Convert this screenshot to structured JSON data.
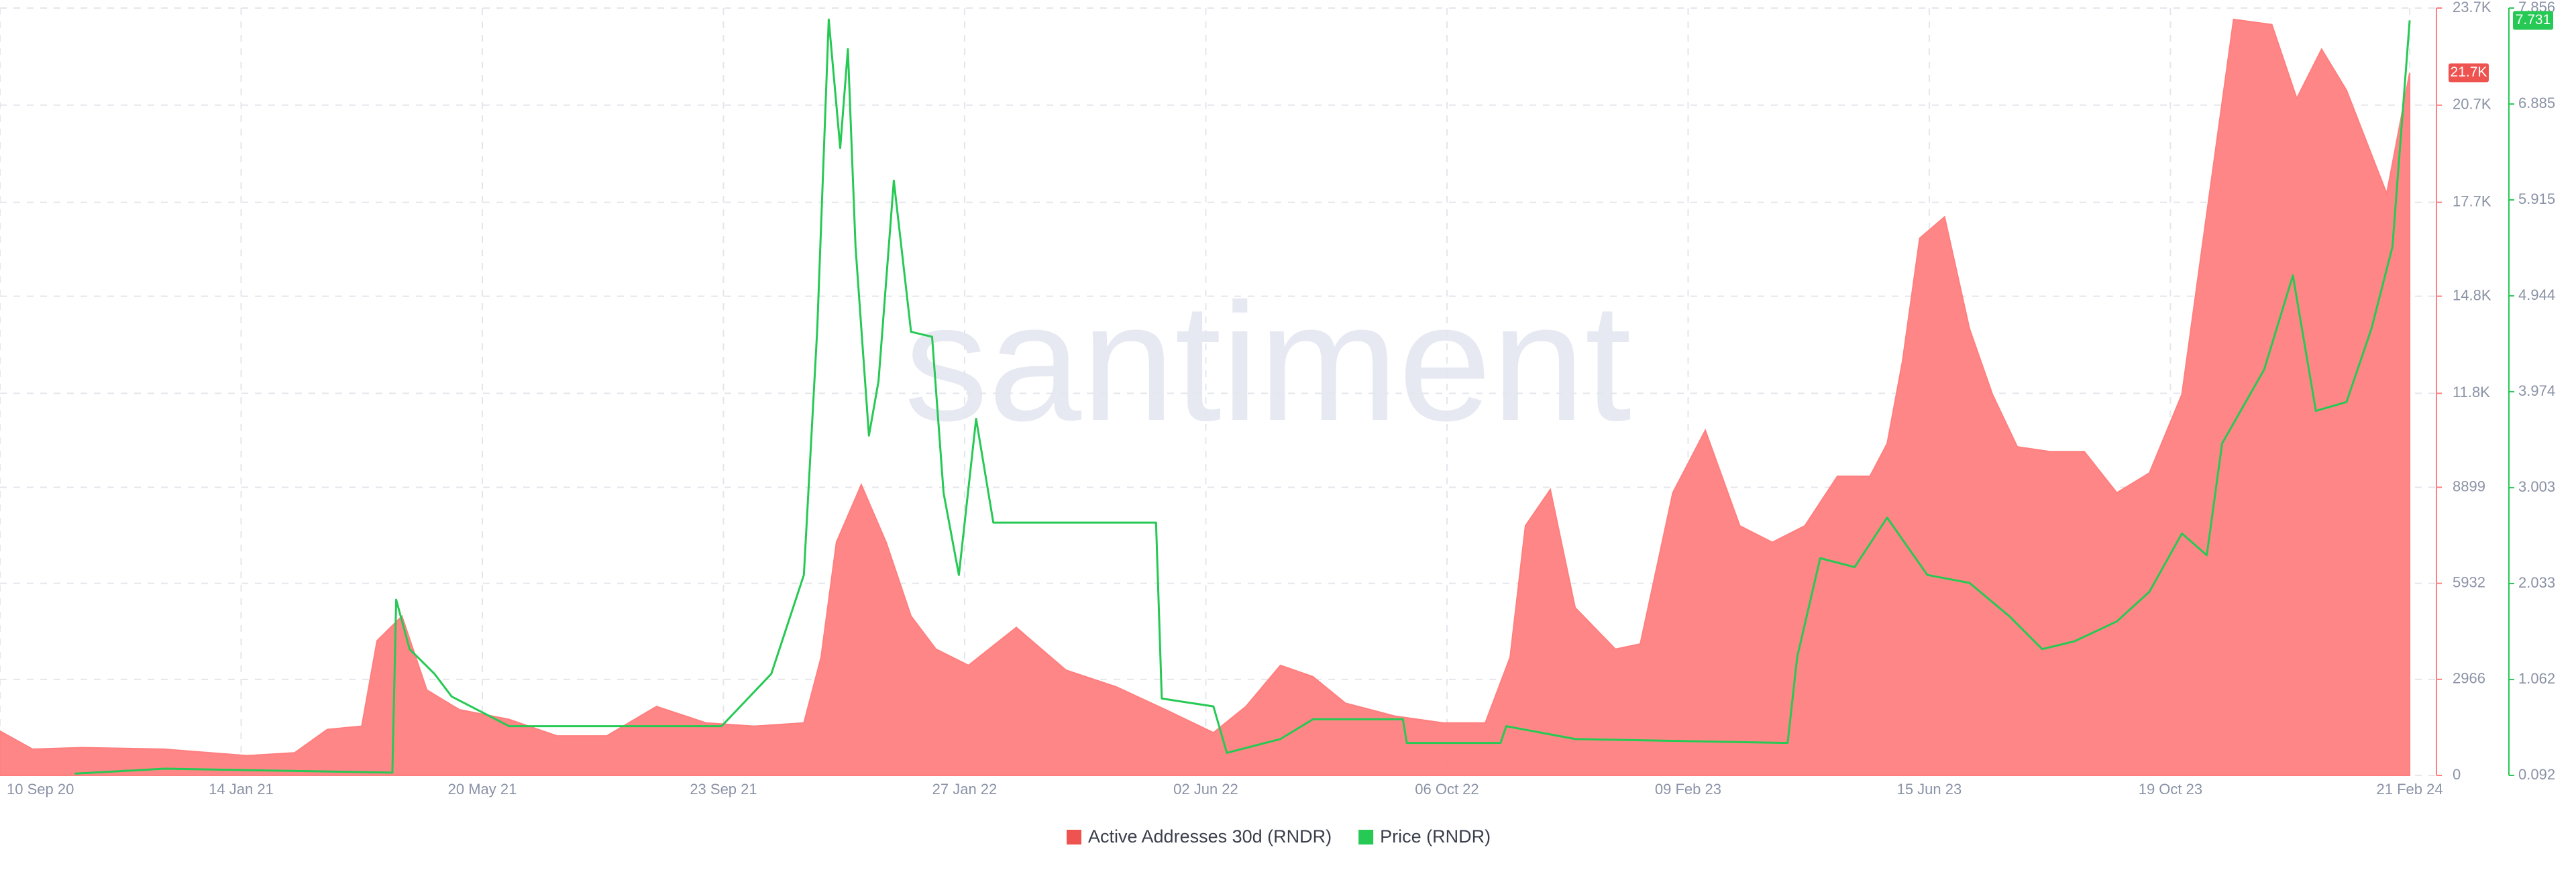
{
  "chart_data": {
    "type": "area-line",
    "watermark": "santiment",
    "xlim": [
      "2020-09-10",
      "2024-03-06"
    ],
    "xticks": [
      {
        "value": "2020-09-10",
        "label": "10 Sep 20"
      },
      {
        "value": "2021-01-14",
        "label": "14 Jan 21"
      },
      {
        "value": "2021-05-20",
        "label": "20 May 21"
      },
      {
        "value": "2021-09-23",
        "label": "23 Sep 21"
      },
      {
        "value": "2022-01-27",
        "label": "27 Jan 22"
      },
      {
        "value": "2022-06-02",
        "label": "02 Jun 22"
      },
      {
        "value": "2022-10-06",
        "label": "06 Oct 22"
      },
      {
        "value": "2023-02-09",
        "label": "09 Feb 23"
      },
      {
        "value": "2023-06-15",
        "label": "15 Jun 23"
      },
      {
        "value": "2023-10-19",
        "label": "19 Oct 23"
      },
      {
        "value": "2024-02-21",
        "label": "21 Feb 24"
      }
    ],
    "ylim": [
      0,
      23700
    ],
    "yticks": [
      0,
      2966,
      5932,
      8899,
      {
        "value": 11800,
        "label": "11.8K"
      },
      {
        "value": 14800,
        "label": "14.8K"
      },
      {
        "value": 17700,
        "label": "17.7K"
      },
      {
        "value": 20700,
        "label": "20.7K"
      },
      {
        "value": 23700,
        "label": "23.7K"
      }
    ],
    "y2lim": [
      0.092,
      7.856
    ],
    "y2ticks": [
      0.092,
      1.062,
      2.033,
      3.003,
      3.974,
      4.944,
      5.915,
      6.885,
      7.856
    ],
    "grid": true,
    "legend": "bottom",
    "series": [
      {
        "name": "Active Addresses 30d (RNDR)",
        "color": "#ff7f7f",
        "kind": "area",
        "axis": "y",
        "end_label": "21.7K",
        "x": [
          "2020-09-10",
          "2020-09-27",
          "2020-10-23",
          "2020-12-05",
          "2021-01-17",
          "2021-02-11",
          "2021-02-28",
          "2021-03-18",
          "2021-03-26",
          "2021-04-08",
          "2021-04-21",
          "2021-05-08",
          "2021-06-03",
          "2021-06-28",
          "2021-07-24",
          "2021-08-19",
          "2021-09-14",
          "2021-10-09",
          "2021-11-04",
          "2021-11-13",
          "2021-11-21",
          "2021-12-04",
          "2021-12-17",
          "2021-12-30",
          "2022-01-12",
          "2022-01-29",
          "2022-02-23",
          "2022-03-21",
          "2022-04-16",
          "2022-05-12",
          "2022-06-06",
          "2022-06-23",
          "2022-07-11",
          "2022-07-28",
          "2022-08-14",
          "2022-09-09",
          "2022-10-04",
          "2022-10-26",
          "2022-11-08",
          "2022-11-16",
          "2022-11-29",
          "2022-12-12",
          "2023-01-02",
          "2023-01-15",
          "2023-02-01",
          "2023-02-18",
          "2023-03-08",
          "2023-03-25",
          "2023-04-11",
          "2023-04-28",
          "2023-05-15",
          "2023-05-24",
          "2023-06-01",
          "2023-06-10",
          "2023-06-23",
          "2023-07-06",
          "2023-07-18",
          "2023-07-31",
          "2023-08-17",
          "2023-09-04",
          "2023-09-21",
          "2023-10-08",
          "2023-10-25",
          "2023-11-07",
          "2023-11-21",
          "2023-12-11",
          "2023-12-24",
          "2024-01-06",
          "2024-01-19",
          "2024-02-09",
          "2024-02-21"
        ],
        "values": [
          1370,
          810,
          860,
          810,
          610,
          700,
          1420,
          1520,
          4160,
          4920,
          2640,
          2030,
          1730,
          1220,
          1220,
          2130,
          1620,
          1520,
          1620,
          3650,
          7200,
          8980,
          7200,
          4920,
          3900,
          3400,
          4570,
          3250,
          2740,
          2030,
          1320,
          2130,
          3400,
          3050,
          2230,
          1830,
          1620,
          1620,
          3650,
          7710,
          8830,
          5180,
          3900,
          4060,
          8730,
          10660,
          7710,
          7200,
          7710,
          9240,
          9240,
          10250,
          12790,
          16590,
          17250,
          13800,
          11770,
          10150,
          10000,
          10000,
          8730,
          9340,
          11770,
          17360,
          23350,
          23190,
          20910,
          22430,
          21160,
          17970,
          21700
        ]
      },
      {
        "name": "Price (RNDR)",
        "color": "#26c953",
        "kind": "line",
        "axis": "y2",
        "end_label": "7.731",
        "x": [
          "2020-10-19",
          "2020-12-05",
          "2021-04-03",
          "2021-04-05",
          "2021-04-12",
          "2021-04-25",
          "2021-05-04",
          "2021-06-03",
          "2021-09-22",
          "2021-10-18",
          "2021-11-04",
          "2021-11-11",
          "2021-11-17",
          "2021-11-23",
          "2021-11-27",
          "2021-12-01",
          "2021-12-08",
          "2021-12-13",
          "2021-12-21",
          "2021-12-30",
          "2022-01-10",
          "2022-01-16",
          "2022-01-24",
          "2022-02-02",
          "2022-02-11",
          "2022-05-07",
          "2022-05-10",
          "2022-06-06",
          "2022-06-13",
          "2022-07-11",
          "2022-07-28",
          "2022-09-13",
          "2022-09-15",
          "2022-11-03",
          "2022-11-06",
          "2022-12-12",
          "2023-04-02",
          "2023-04-07",
          "2023-04-19",
          "2023-05-07",
          "2023-05-24",
          "2023-06-14",
          "2023-07-06",
          "2023-07-27",
          "2023-08-13",
          "2023-08-30",
          "2023-09-21",
          "2023-10-08",
          "2023-10-25",
          "2023-11-07",
          "2023-11-15",
          "2023-12-07",
          "2023-12-22",
          "2024-01-03",
          "2024-01-19",
          "2024-02-01",
          "2024-02-12",
          "2024-02-21"
        ],
        "values": [
          0.11,
          0.16,
          0.12,
          1.87,
          1.37,
          1.12,
          0.89,
          0.59,
          0.59,
          1.12,
          2.12,
          4.61,
          7.74,
          6.44,
          7.44,
          5.44,
          3.53,
          4.08,
          6.11,
          4.58,
          4.53,
          2.95,
          2.12,
          3.7,
          2.65,
          2.65,
          0.87,
          0.79,
          0.32,
          0.46,
          0.66,
          0.66,
          0.42,
          0.42,
          0.59,
          0.46,
          0.42,
          1.29,
          2.29,
          2.2,
          2.7,
          2.12,
          2.04,
          1.7,
          1.37,
          1.45,
          1.65,
          1.95,
          2.54,
          2.32,
          3.45,
          4.2,
          5.15,
          3.78,
          3.87,
          4.61,
          5.44,
          7.731
        ]
      }
    ]
  }
}
